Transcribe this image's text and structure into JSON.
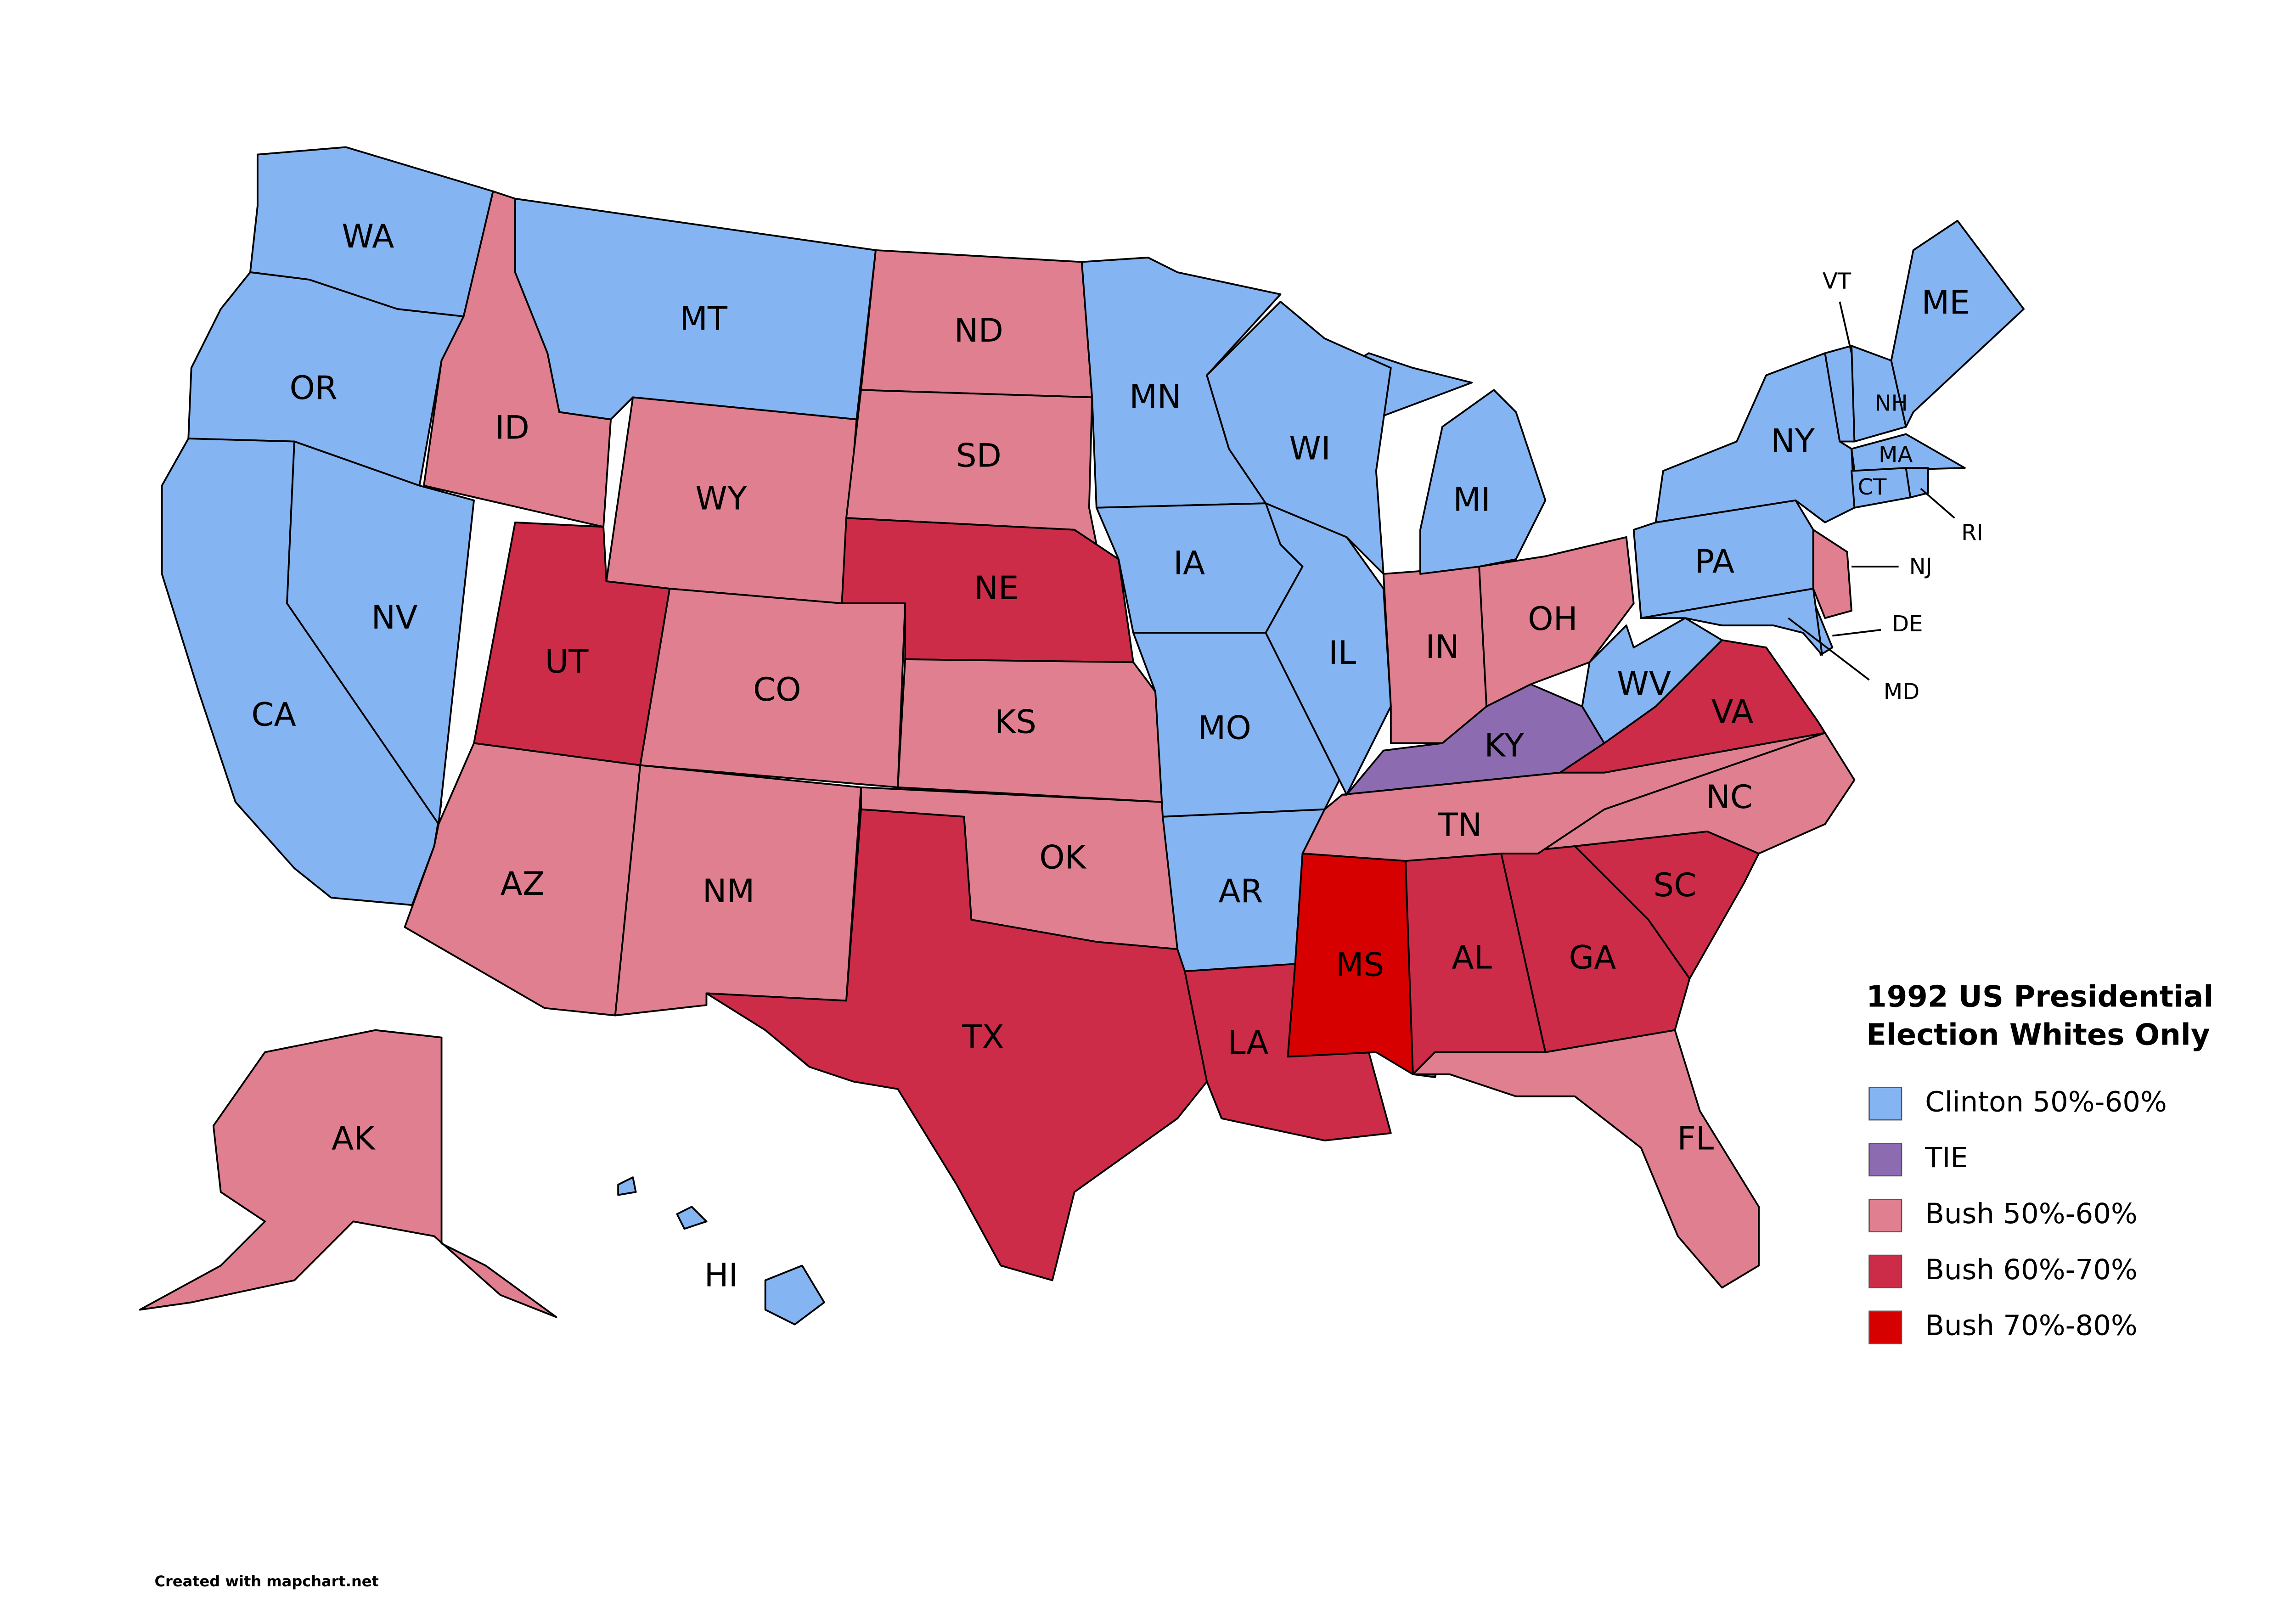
{
  "title_lines": [
    "1992 US Presidential",
    "Election Whites Only"
  ],
  "legend": [
    {
      "label": "Clinton 50%-60%",
      "color": "#85b4f2"
    },
    {
      "label": "TIE",
      "color": "#8c6bb1"
    },
    {
      "label": "Bush 50%-60%",
      "color": "#e07f8f"
    },
    {
      "label": "Bush 60%-70%",
      "color": "#cc2c48"
    },
    {
      "label": "Bush 70%-80%",
      "color": "#d60000"
    }
  ],
  "states": [
    {
      "label": "WA",
      "color": "#85b4f2"
    },
    {
      "label": "OR",
      "color": "#85b4f2"
    },
    {
      "label": "CA",
      "color": "#85b4f2"
    },
    {
      "label": "NV",
      "color": "#85b4f2"
    },
    {
      "label": "ID",
      "color": "#e07f8f"
    },
    {
      "label": "MT",
      "color": "#85b4f2"
    },
    {
      "label": "WY",
      "color": "#e07f8f"
    },
    {
      "label": "UT",
      "color": "#cc2c48"
    },
    {
      "label": "CO",
      "color": "#e07f8f"
    },
    {
      "label": "AZ",
      "color": "#e07f8f"
    },
    {
      "label": "NM",
      "color": "#e07f8f"
    },
    {
      "label": "ND",
      "color": "#e07f8f"
    },
    {
      "label": "SD",
      "color": "#e07f8f"
    },
    {
      "label": "NE",
      "color": "#cc2c48"
    },
    {
      "label": "KS",
      "color": "#e07f8f"
    },
    {
      "label": "OK",
      "color": "#e07f8f"
    },
    {
      "label": "TX",
      "color": "#cc2c48"
    },
    {
      "label": "MN",
      "color": "#85b4f2"
    },
    {
      "label": "IA",
      "color": "#85b4f2"
    },
    {
      "label": "MO",
      "color": "#85b4f2"
    },
    {
      "label": "AR",
      "color": "#85b4f2"
    },
    {
      "label": "LA",
      "color": "#cc2c48"
    },
    {
      "label": "MS",
      "color": "#d60000"
    },
    {
      "label": "AL",
      "color": "#cc2c48"
    },
    {
      "label": "GA",
      "color": "#cc2c48"
    },
    {
      "label": "FL",
      "color": "#e07f8f"
    },
    {
      "label": "SC",
      "color": "#cc2c48"
    },
    {
      "label": "NC",
      "color": "#e07f8f"
    },
    {
      "label": "TN",
      "color": "#e07f8f"
    },
    {
      "label": "KY",
      "color": "#8c6bb1"
    },
    {
      "label": "VA",
      "color": "#cc2c48"
    },
    {
      "label": "WV",
      "color": "#85b4f2"
    },
    {
      "label": "IL",
      "color": "#85b4f2"
    },
    {
      "label": "IN",
      "color": "#e07f8f"
    },
    {
      "label": "OH",
      "color": "#e07f8f"
    },
    {
      "label": "MI",
      "color": "#85b4f2"
    },
    {
      "label": "WI",
      "color": "#85b4f2"
    },
    {
      "label": "PA",
      "color": "#85b4f2"
    },
    {
      "label": "NY",
      "color": "#85b4f2"
    },
    {
      "label": "NJ",
      "color": "#e07f8f"
    },
    {
      "label": "DE",
      "color": "#85b4f2"
    },
    {
      "label": "MD",
      "color": "#85b4f2"
    },
    {
      "label": "VT",
      "color": "#85b4f2"
    },
    {
      "label": "NH",
      "color": "#85b4f2"
    },
    {
      "label": "ME",
      "color": "#85b4f2"
    },
    {
      "label": "MA",
      "color": "#85b4f2"
    },
    {
      "label": "CT",
      "color": "#85b4f2"
    },
    {
      "label": "RI",
      "color": "#85b4f2"
    },
    {
      "label": "AK",
      "color": "#e07f8f"
    },
    {
      "label": "HI",
      "color": "#85b4f2"
    }
  ],
  "footer": "Created with mapchart.net"
}
